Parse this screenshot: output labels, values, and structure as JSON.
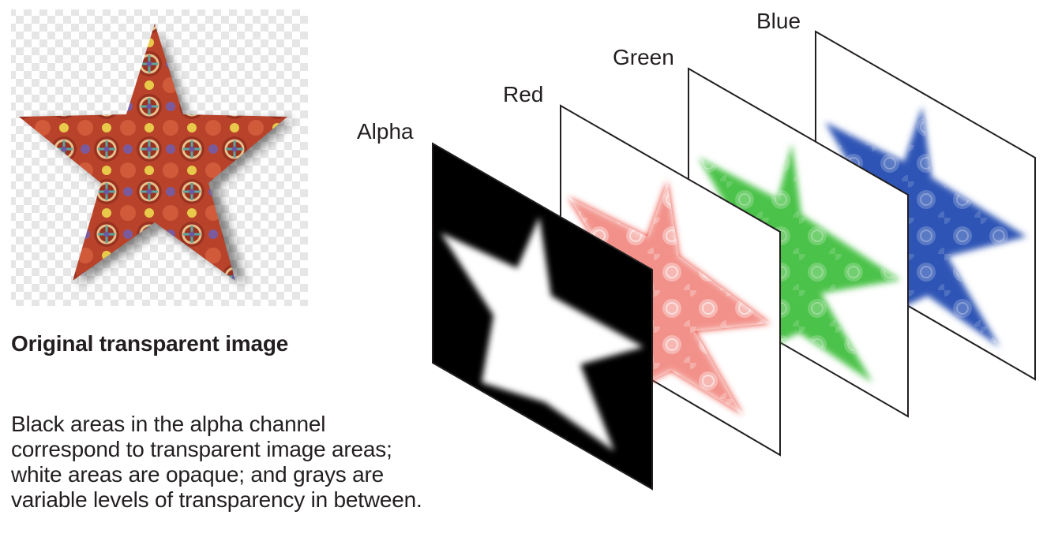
{
  "figure": {
    "original_image_caption": "Original transparent image",
    "description_lines": [
      "Black areas in the alpha channel",
      "correspond to transparent image areas;",
      "white areas are opaque; and grays are",
      "variable levels of transparency in between."
    ],
    "channel_labels": {
      "alpha": "Alpha",
      "red": "Red",
      "green": "Green",
      "blue": "Blue"
    }
  },
  "colors": {
    "star_fill": "#b8432a",
    "star_pattern_accent_1": "#6b5aa0",
    "star_pattern_accent_2": "#e8c94a",
    "star_pattern_accent_3": "#3c9a8a",
    "checker_light": "#ffffff",
    "checker_dark": "#e6e6e6",
    "alpha_background": "#000000",
    "alpha_star": "#ffffff",
    "red_channel": "#e8372c",
    "green_channel": "#4cc24a",
    "blue_channel": "#2d55b5",
    "frame_stroke": "#231f20"
  }
}
